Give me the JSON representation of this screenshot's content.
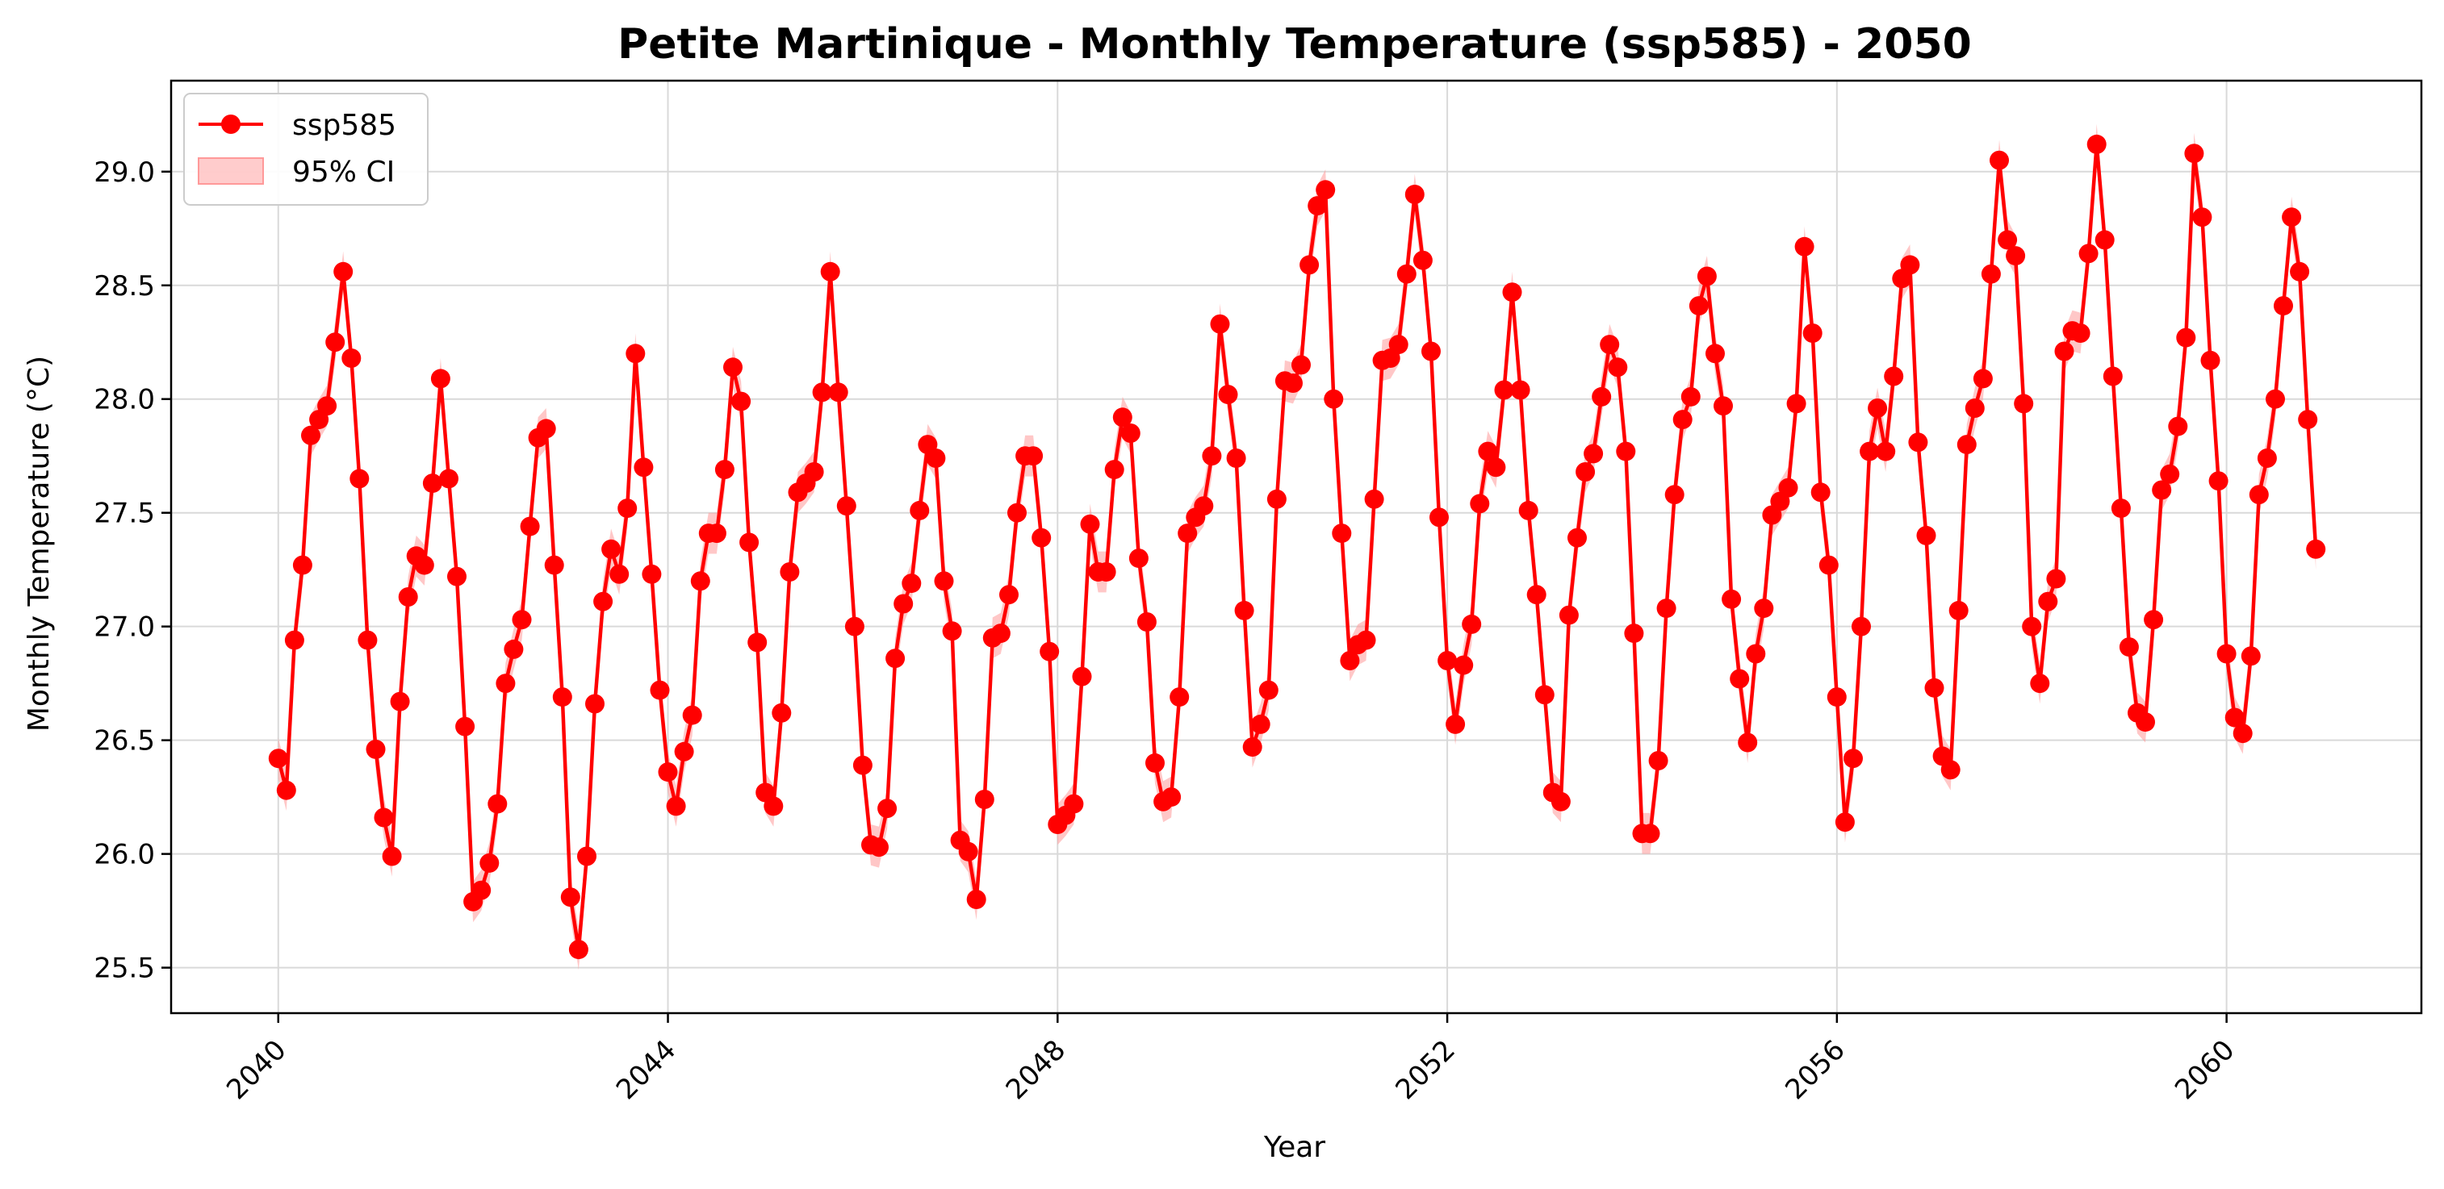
{
  "colors": {
    "series": "#ff0000",
    "ci_fill": "#ff9999",
    "grid": "#d9d9d9",
    "axis": "#000000"
  },
  "chart_data": {
    "type": "line",
    "title": "Petite Martinique - Monthly Temperature (ssp585) - 2050",
    "xlabel": "Year",
    "ylabel": "Monthly Temperature (°C)",
    "xlim": [
      2038.9,
      2062.0
    ],
    "ylim": [
      25.3,
      29.4
    ],
    "x_ticks": [
      2040,
      2044,
      2048,
      2052,
      2056,
      2060
    ],
    "x_tick_labels": [
      "2040",
      "2044",
      "2048",
      "2052",
      "2056",
      "2060"
    ],
    "y_ticks": [
      25.5,
      26.0,
      26.5,
      27.0,
      27.5,
      28.0,
      28.5,
      29.0
    ],
    "y_tick_labels": [
      "25.5",
      "26.0",
      "26.5",
      "27.0",
      "27.5",
      "28.0",
      "28.5",
      "29.0"
    ],
    "grid": true,
    "legend_position": "top-left",
    "legend": [
      {
        "label": "ssp585",
        "kind": "line-marker"
      },
      {
        "label": "95% CI",
        "kind": "patch"
      }
    ],
    "start": "2040-01",
    "frequency": "monthly",
    "ci_half_width": 0.09,
    "series": [
      {
        "name": "ssp585",
        "values": [
          26.42,
          26.28,
          26.94,
          27.27,
          27.84,
          27.91,
          27.97,
          28.25,
          28.56,
          28.18,
          27.65,
          26.94,
          26.46,
          26.16,
          25.99,
          26.67,
          27.13,
          27.31,
          27.27,
          27.63,
          28.09,
          27.65,
          27.22,
          26.56,
          25.79,
          25.84,
          25.96,
          26.22,
          26.75,
          26.9,
          27.03,
          27.44,
          27.83,
          27.87,
          27.27,
          26.69,
          25.81,
          25.58,
          25.99,
          26.66,
          27.11,
          27.34,
          27.23,
          27.52,
          28.2,
          27.7,
          27.23,
          26.72,
          26.36,
          26.21,
          26.45,
          26.61,
          27.2,
          27.41,
          27.41,
          27.69,
          28.14,
          27.99,
          27.37,
          26.93,
          26.27,
          26.21,
          26.62,
          27.24,
          27.59,
          27.63,
          27.68,
          28.03,
          28.56,
          28.03,
          27.53,
          27.0,
          26.39,
          26.04,
          26.03,
          26.2,
          26.86,
          27.1,
          27.19,
          27.51,
          27.8,
          27.74,
          27.2,
          26.98,
          26.06,
          26.01,
          25.8,
          26.24,
          26.95,
          26.97,
          27.14,
          27.5,
          27.75,
          27.75,
          27.39,
          26.89,
          26.13,
          26.17,
          26.22,
          26.78,
          27.45,
          27.24,
          27.24,
          27.69,
          27.92,
          27.85,
          27.3,
          27.02,
          26.4,
          26.23,
          26.25,
          26.69,
          27.41,
          27.48,
          27.53,
          27.75,
          28.33,
          28.02,
          27.74,
          27.07,
          26.47,
          26.57,
          26.72,
          27.56,
          28.08,
          28.07,
          28.15,
          28.59,
          28.85,
          28.92,
          28.0,
          27.41,
          26.85,
          26.92,
          26.94,
          27.56,
          28.17,
          28.18,
          28.24,
          28.55,
          28.9,
          28.61,
          28.21,
          27.48,
          26.85,
          26.57,
          26.83,
          27.01,
          27.54,
          27.77,
          27.7,
          28.04,
          28.47,
          28.04,
          27.51,
          27.14,
          26.7,
          26.27,
          26.23,
          27.05,
          27.39,
          27.68,
          27.76,
          28.01,
          28.24,
          28.14,
          27.77,
          26.97,
          26.09,
          26.09,
          26.41,
          27.08,
          27.58,
          27.91,
          28.01,
          28.41,
          28.54,
          28.2,
          27.97,
          27.12,
          26.77,
          26.49,
          26.88,
          27.08,
          27.49,
          27.55,
          27.61,
          27.98,
          28.67,
          28.29,
          27.59,
          27.27,
          26.69,
          26.14,
          26.42,
          27.0,
          27.77,
          27.96,
          27.77,
          28.1,
          28.53,
          28.59,
          27.81,
          27.4,
          26.73,
          26.43,
          26.37,
          27.07,
          27.8,
          27.96,
          28.09,
          28.55,
          29.05,
          28.7,
          28.63,
          27.98,
          27.0,
          26.75,
          27.11,
          27.21,
          28.21,
          28.3,
          28.29,
          28.64,
          29.12,
          28.7,
          28.1,
          27.52,
          26.91,
          26.62,
          26.58,
          27.03,
          27.6,
          27.67,
          27.88,
          28.27,
          29.08,
          28.8,
          28.17,
          27.64,
          26.88,
          26.6,
          26.53,
          26.87,
          27.58,
          27.74,
          28.0,
          28.41,
          28.8,
          28.56,
          27.91,
          27.34
        ]
      }
    ]
  }
}
